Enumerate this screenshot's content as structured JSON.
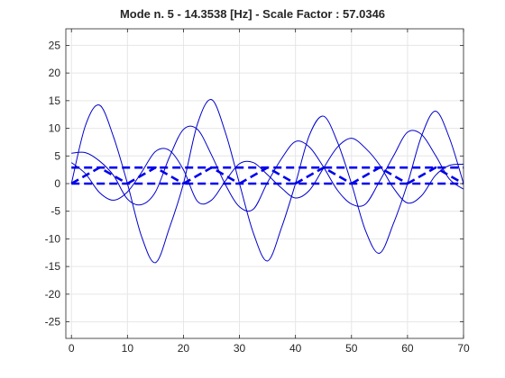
{
  "chart_data": {
    "type": "line",
    "title": "Mode n. 5 - 14.3538 [Hz] - Scale Factor : 57.0346",
    "xlabel": "",
    "ylabel": "",
    "xlim": [
      -1,
      70
    ],
    "ylim": [
      -28,
      28
    ],
    "xticks": [
      0,
      10,
      20,
      30,
      40,
      50,
      60,
      70
    ],
    "yticks": [
      -25,
      -20,
      -15,
      -10,
      -5,
      0,
      5,
      10,
      15,
      20,
      25
    ],
    "grid": true,
    "legend": "none",
    "colors": {
      "axis": "#262626",
      "grid": "#e6e6e6",
      "deformed": "#0000cc",
      "undeformed": "#0000ee"
    },
    "undeformed_structure": {
      "style": "dashed",
      "bottom_chord": {
        "x": [
          0,
          70
        ],
        "y": [
          0,
          0
        ]
      },
      "top_chord": {
        "x": [
          0,
          70
        ],
        "y": [
          2.9,
          2.9
        ]
      },
      "diagonals": [
        {
          "x": [
            0,
            5,
            10
          ],
          "y": [
            0,
            2.9,
            0
          ]
        },
        {
          "x": [
            10,
            15,
            20
          ],
          "y": [
            0,
            2.9,
            0
          ]
        },
        {
          "x": [
            20,
            25,
            30
          ],
          "y": [
            0,
            2.9,
            0
          ]
        },
        {
          "x": [
            30,
            35,
            40
          ],
          "y": [
            0,
            2.9,
            0
          ]
        },
        {
          "x": [
            40,
            45,
            50
          ],
          "y": [
            0,
            2.9,
            0
          ]
        },
        {
          "x": [
            50,
            55,
            60
          ],
          "y": [
            0,
            2.9,
            0
          ]
        },
        {
          "x": [
            60,
            65,
            70
          ],
          "y": [
            0,
            2.9,
            0
          ]
        },
        {
          "x": [
            0,
            10,
            5,
            15,
            10,
            20,
            15,
            25,
            20,
            30,
            25,
            35,
            30,
            40,
            35,
            45,
            40,
            50,
            45,
            55,
            50,
            60,
            55,
            65,
            60,
            70
          ],
          "y": [
            0,
            2.9,
            0,
            2.9,
            0,
            2.9,
            0,
            2.9,
            0,
            2.9,
            0,
            2.9,
            0,
            2.9,
            0,
            2.9,
            0,
            2.9,
            0,
            2.9,
            0,
            2.9,
            0,
            2.9,
            0,
            2.9
          ]
        }
      ]
    },
    "deformed_shape": {
      "style": "solid",
      "series": [
        {
          "x": [
            0,
            2.5,
            5,
            7.5,
            10,
            12.5,
            15,
            17.5,
            20,
            22.5,
            25,
            27.5,
            30,
            32.5,
            35,
            37.5,
            40,
            42.5,
            45,
            47.5,
            50,
            52.5,
            55,
            57.5,
            60,
            62.5,
            65,
            67.5,
            70
          ],
          "y": [
            0,
            10.5,
            14.2,
            8.5,
            0,
            -9.5,
            -14.3,
            -8,
            0,
            10.8,
            15.2,
            9.2,
            0,
            -9,
            -14,
            -8,
            0,
            8.8,
            12.2,
            7.5,
            0,
            -8.5,
            -12.6,
            -7.2,
            0,
            8.6,
            13.1,
            8.2,
            0
          ]
        },
        {
          "x": [
            0,
            2.5,
            5,
            7.5,
            10,
            12.5,
            15,
            17.5,
            20,
            22.5,
            25,
            27.5,
            30,
            32.5,
            35,
            37.5,
            40,
            42.5,
            45,
            47.5,
            50,
            52.5,
            55,
            57.5,
            60,
            62.5,
            65,
            67.5,
            70
          ],
          "y": [
            5.5,
            5.6,
            4.1,
            1.5,
            -2.8,
            -3.8,
            -1.5,
            4.8,
            9.8,
            9.8,
            5.2,
            -0.2,
            -4.2,
            -4.6,
            0.2,
            4.5,
            7.6,
            6.6,
            3.0,
            -1.2,
            -3.7,
            -3.7,
            0.4,
            5.0,
            9.3,
            8.9,
            5.1,
            0.8,
            -1.0
          ]
        },
        {
          "x": [
            0,
            2.5,
            5,
            7.5,
            10,
            12.5,
            15,
            17.5,
            20,
            22.5,
            25,
            27.5,
            30,
            32.5,
            35,
            37.5,
            40,
            42.5,
            45,
            47.5,
            50,
            52.5,
            55,
            57.5,
            60,
            62.5,
            65,
            67.5,
            70
          ],
          "y": [
            3.8,
            1.8,
            -1.6,
            -3.0,
            -1.5,
            2.0,
            5.8,
            6.0,
            2.5,
            -3.2,
            -3.0,
            0.5,
            3.6,
            3.8,
            1.6,
            -0.8,
            -2.6,
            -1.2,
            2.8,
            6.6,
            8.2,
            6.4,
            3.4,
            -0.8,
            -3.5,
            -2.2,
            1.5,
            3.3,
            3.5
          ]
        }
      ]
    }
  }
}
